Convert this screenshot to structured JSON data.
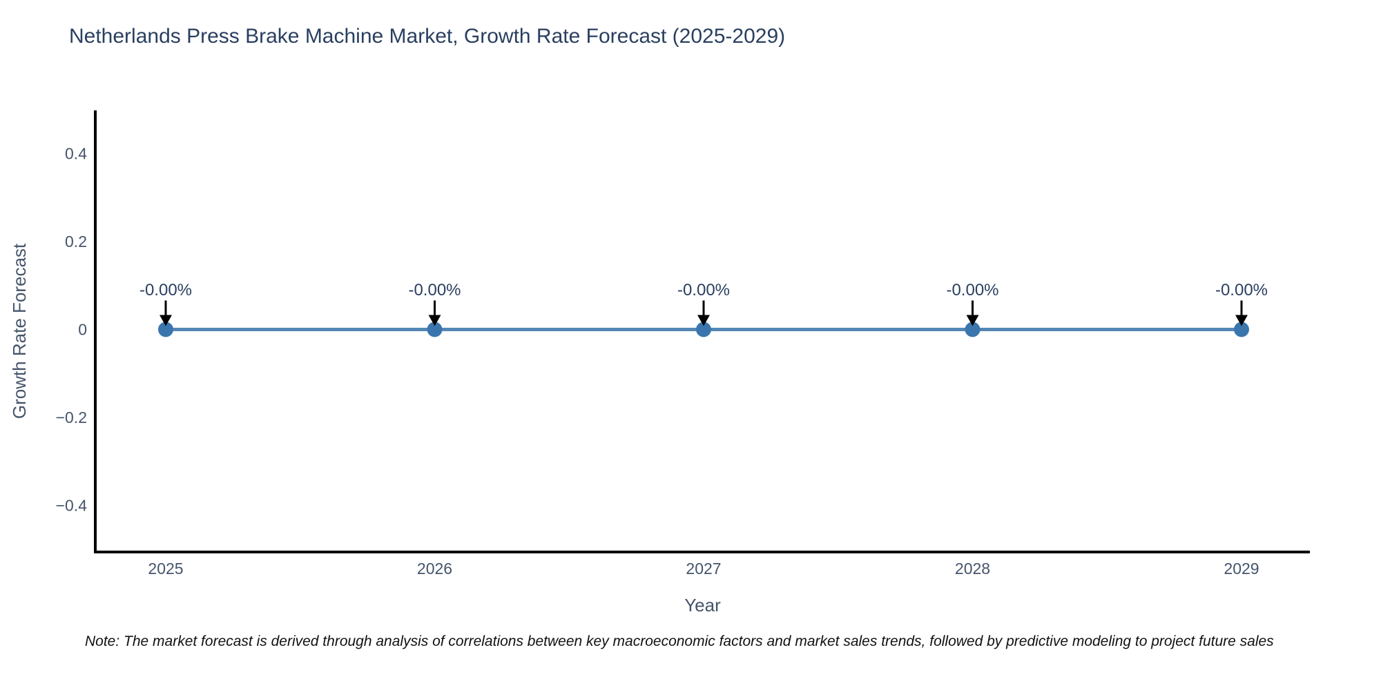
{
  "title": "Netherlands Press Brake Machine Market, Growth Rate Forecast (2025-2029)",
  "note": "Note: The market forecast is derived through analysis of correlations between key macroeconomic factors and market sales trends, followed by predictive modeling to project future sales",
  "chart_data": {
    "type": "line",
    "title": "Netherlands Press Brake Machine Market, Growth Rate Forecast (2025-2029)",
    "xlabel": "Year",
    "ylabel": "Growth Rate Forecast",
    "categories": [
      "2025",
      "2026",
      "2027",
      "2028",
      "2029"
    ],
    "series": [
      {
        "name": "Growth Rate Forecast",
        "values": [
          0,
          0,
          0,
          0,
          0
        ]
      }
    ],
    "point_labels": [
      "-0.00%",
      "-0.00%",
      "-0.00%",
      "-0.00%",
      "-0.00%"
    ],
    "ytick_values": [
      0.4,
      0.2,
      0,
      -0.2,
      -0.4
    ],
    "ytick_labels": [
      "0.4",
      "0.2",
      "0",
      "−0.2",
      "−0.4"
    ],
    "ylim": [
      -0.51,
      0.5
    ],
    "grid": false,
    "legend_position": "none",
    "annotation_style": "black down-arrow from label to point",
    "colors": {
      "line": "#5587b5",
      "marker": "#3a76ad",
      "arrow": "#000000",
      "axis": "#000000",
      "title_text": "#2a3f5f",
      "tick_text": "#45546a",
      "note_text": "#111111"
    }
  }
}
